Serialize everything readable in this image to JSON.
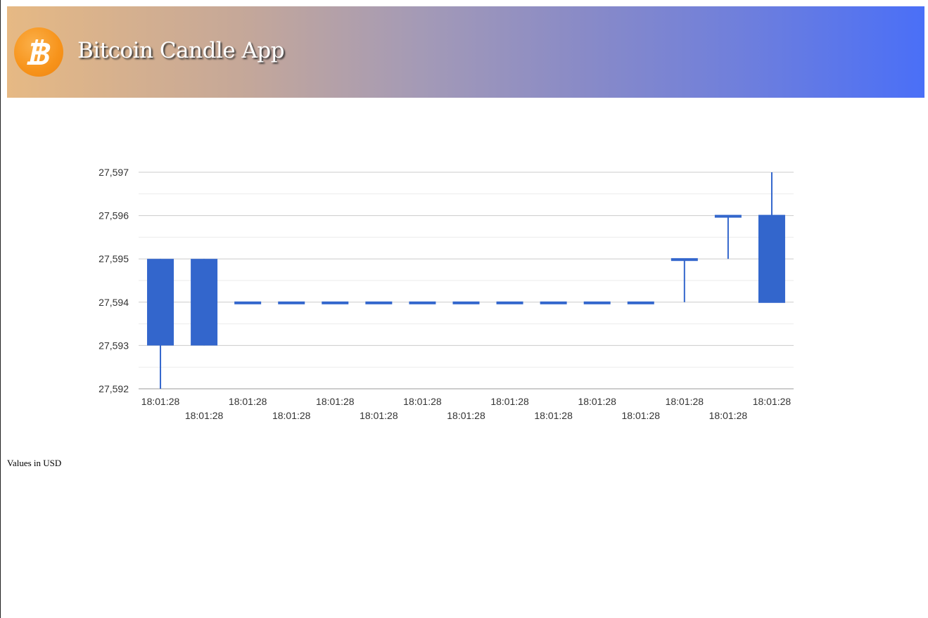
{
  "header": {
    "title": "Bitcoin Candle App",
    "logo_icon": "bitcoin-icon",
    "logo_color": "#f7931a"
  },
  "footnote": "Values in USD",
  "chart_data": {
    "type": "candlestick",
    "title": "",
    "xlabel": "",
    "ylabel": "",
    "ylim": [
      27592,
      27597
    ],
    "y_ticks": [
      27592,
      27593,
      27594,
      27595,
      27596,
      27597
    ],
    "y_tick_labels": [
      "27,592",
      "27,593",
      "27,594",
      "27,595",
      "27,596",
      "27,597"
    ],
    "minor_gridlines": true,
    "legend": "none",
    "color": "#3366cc",
    "categories": [
      "18:01:28",
      "18:01:28",
      "18:01:28",
      "18:01:28",
      "18:01:28",
      "18:01:28",
      "18:01:28",
      "18:01:28",
      "18:01:28",
      "18:01:28",
      "18:01:28",
      "18:01:28",
      "18:01:28",
      "18:01:28",
      "18:01:28"
    ],
    "series": [
      {
        "candles": [
          {
            "open": 27595,
            "close": 27593,
            "low": 27592,
            "high": 27595
          },
          {
            "open": 27595,
            "close": 27593,
            "low": 27593,
            "high": 27595
          },
          {
            "open": 27594,
            "close": 27594,
            "low": 27594,
            "high": 27594
          },
          {
            "open": 27594,
            "close": 27594,
            "low": 27594,
            "high": 27594
          },
          {
            "open": 27594,
            "close": 27594,
            "low": 27594,
            "high": 27594
          },
          {
            "open": 27594,
            "close": 27594,
            "low": 27594,
            "high": 27594
          },
          {
            "open": 27594,
            "close": 27594,
            "low": 27594,
            "high": 27594
          },
          {
            "open": 27594,
            "close": 27594,
            "low": 27594,
            "high": 27594
          },
          {
            "open": 27594,
            "close": 27594,
            "low": 27594,
            "high": 27594
          },
          {
            "open": 27594,
            "close": 27594,
            "low": 27594,
            "high": 27594
          },
          {
            "open": 27594,
            "close": 27594,
            "low": 27594,
            "high": 27594
          },
          {
            "open": 27594,
            "close": 27594,
            "low": 27594,
            "high": 27594
          },
          {
            "open": 27595,
            "close": 27595,
            "low": 27594,
            "high": 27595
          },
          {
            "open": 27596,
            "close": 27596,
            "low": 27595,
            "high": 27596
          },
          {
            "open": 27594,
            "close": 27596,
            "low": 27594,
            "high": 27597
          }
        ]
      }
    ]
  }
}
